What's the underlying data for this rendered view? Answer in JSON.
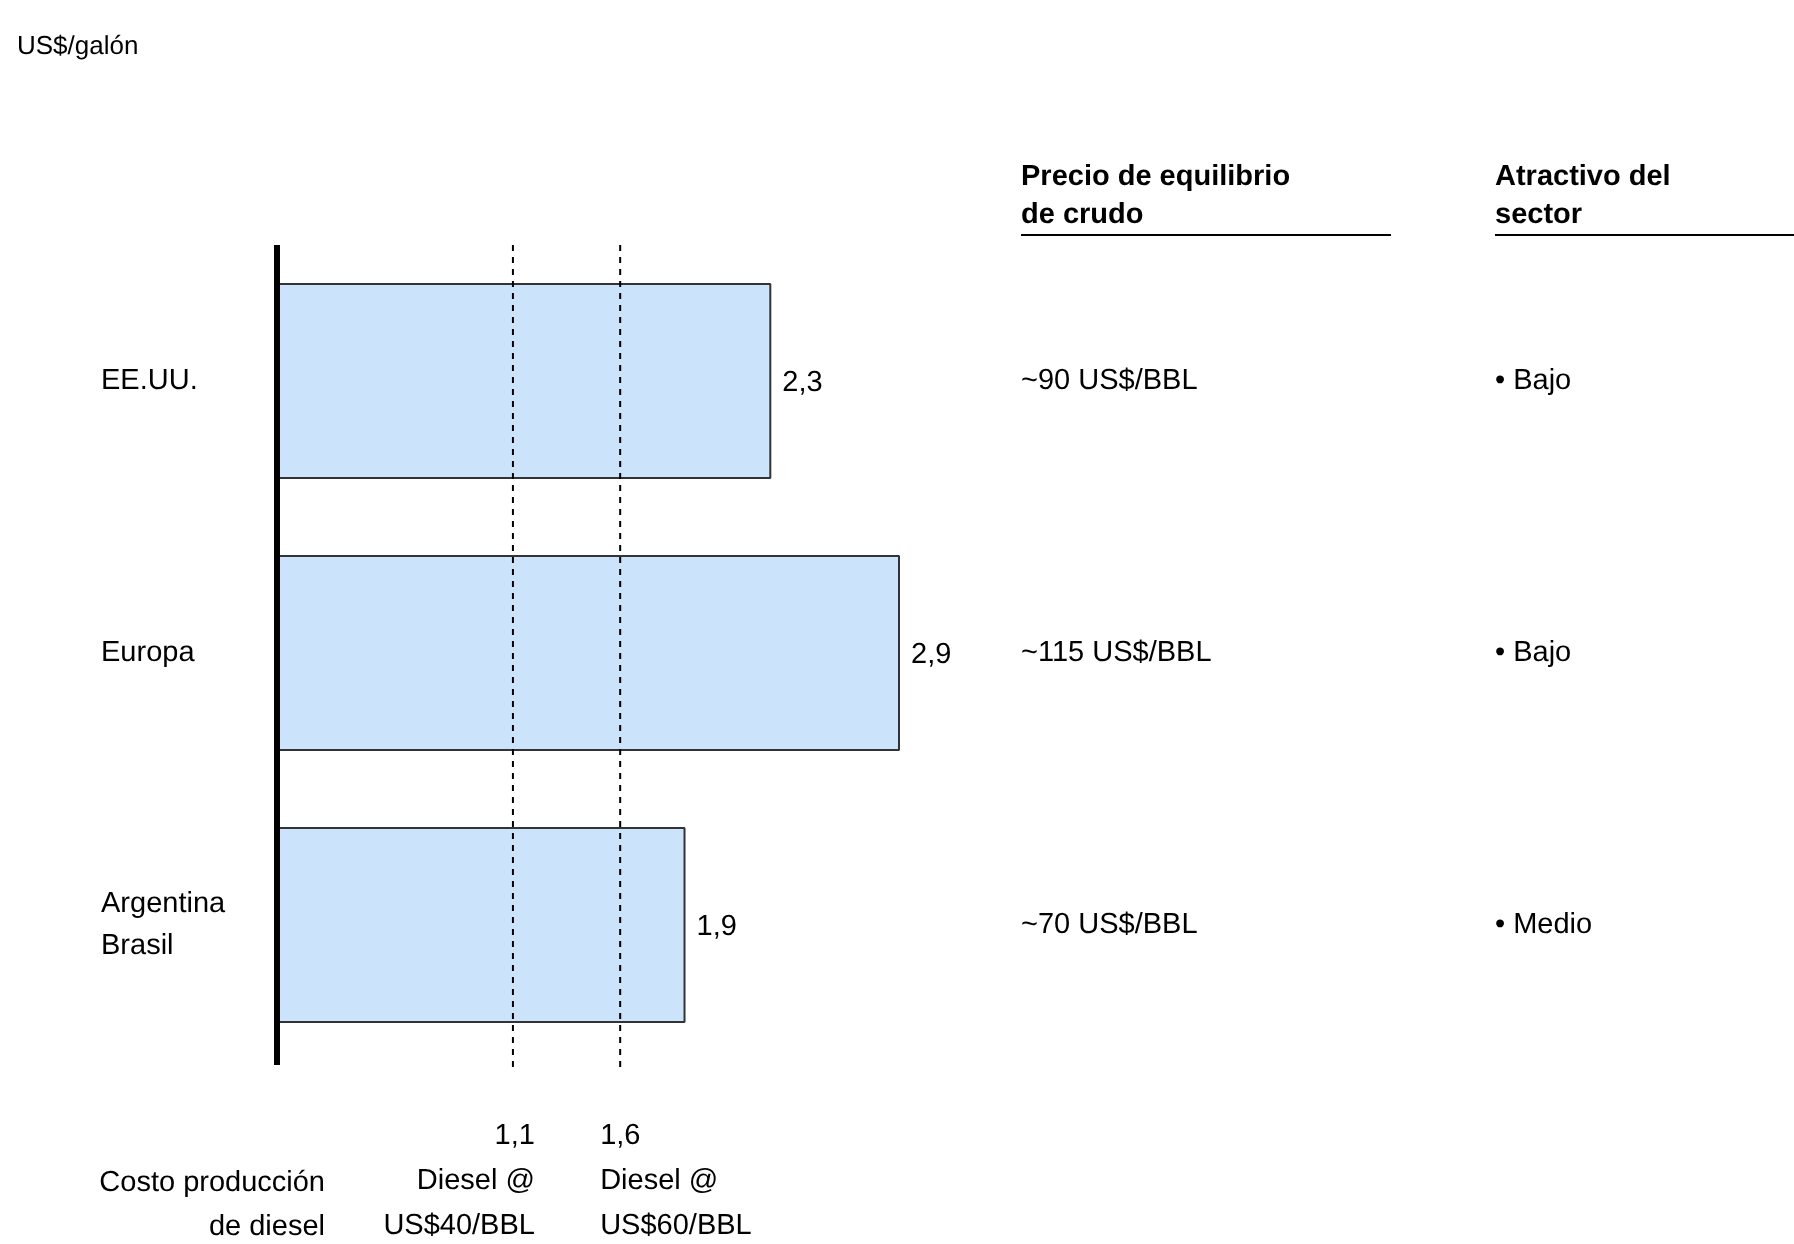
{
  "chart_data": {
    "type": "bar",
    "orientation": "horizontal",
    "categories": [
      "EE.UU.",
      "Europa",
      "Argentina Brasil"
    ],
    "values": [
      2.3,
      2.9,
      1.9
    ],
    "color": "#cce4fb",
    "value_labels": [
      "2,3",
      "2,9",
      "1,9"
    ],
    "ref_lines": [
      {
        "axis": "x",
        "value": 1.1,
        "label": "1,1 Diesel @ US$40/BBL",
        "line_style": "dashed",
        "color": "#000000"
      },
      {
        "axis": "x",
        "value": 1.6,
        "label": "1,6 Diesel @ US$60/BBL",
        "line_style": "dashed",
        "color": "#000000"
      }
    ],
    "annotations": [
      "US$/galón",
      "Precio de equilibrio de crudo",
      "Atractivo del sector",
      "~90 US$/BBL",
      "• Bajo",
      "~115 US$/BBL",
      "• Bajo",
      "~70 US$/BBL",
      "• Medio",
      "Costo producción de diesel"
    ],
    "grid": false
  }
}
